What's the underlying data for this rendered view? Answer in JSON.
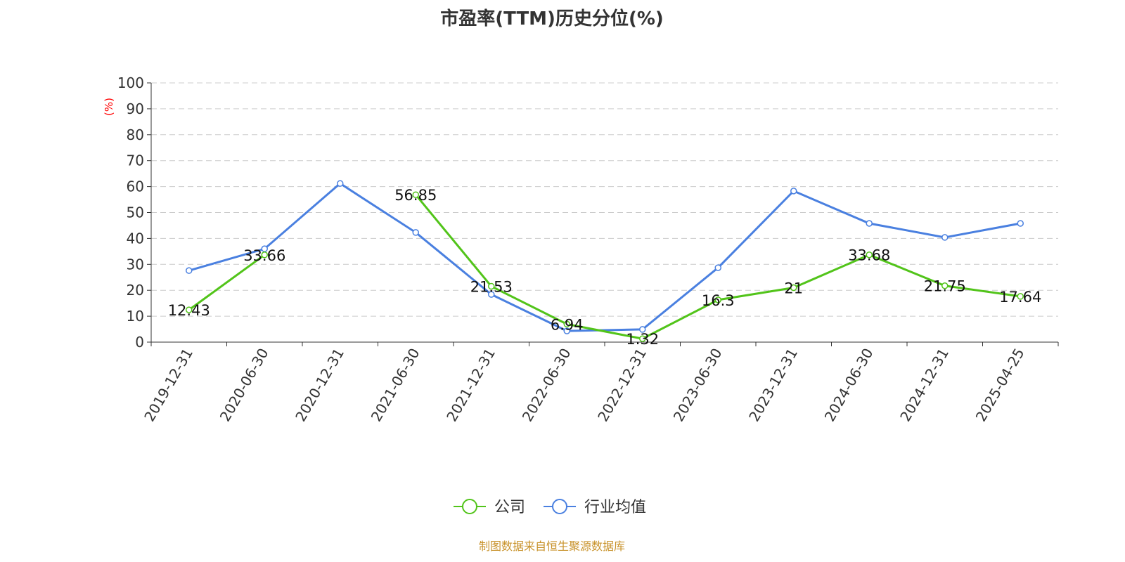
{
  "chart_data": {
    "type": "line",
    "title": "市盈率(TTM)历史分位(%)",
    "ylabel": "(%)",
    "ylim": [
      0,
      100
    ],
    "yticks": [
      0,
      10,
      20,
      30,
      40,
      50,
      60,
      70,
      80,
      90,
      100
    ],
    "grid": true,
    "legend_placement": "bottom",
    "categories": [
      "2019-12-31",
      "2020-06-30",
      "2020-12-31",
      "2021-06-30",
      "2021-12-31",
      "2022-06-30",
      "2022-12-31",
      "2023-06-30",
      "2023-12-31",
      "2024-06-30",
      "2024-12-31",
      "2025-04-25"
    ],
    "series": [
      {
        "name": "公司",
        "color": "#52c41a",
        "labels": true,
        "values": [
          12.43,
          33.66,
          null,
          56.85,
          21.53,
          6.94,
          1.32,
          16.3,
          21,
          33.68,
          21.75,
          17.64
        ]
      },
      {
        "name": "行业均值",
        "color": "#4a80e0",
        "labels": false,
        "values": [
          27.6,
          36.0,
          61.2,
          42.3,
          18.4,
          4.3,
          4.9,
          28.7,
          58.3,
          45.8,
          40.4,
          45.8
        ]
      }
    ]
  },
  "source": "制图数据来自恒生聚源数据库"
}
